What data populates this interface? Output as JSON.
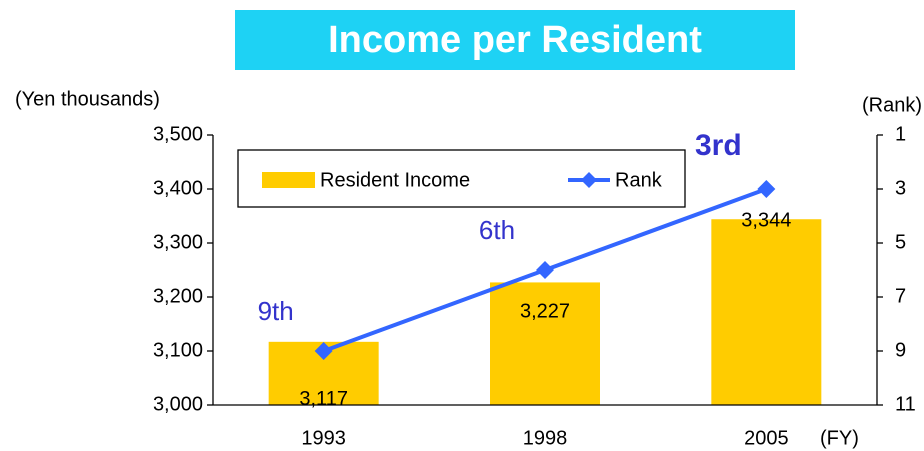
{
  "chart_data": {
    "type": "bar_line",
    "title": "Income per Resident",
    "y_label": "(Yen thousands)",
    "y2_label": "(Rank)",
    "x_label": "(FY)",
    "categories": [
      "1993",
      "1998",
      "2005"
    ],
    "series": [
      {
        "name": "Resident Income",
        "type": "bar",
        "color": "#ffcc00",
        "values": [
          3117,
          3227,
          3344
        ],
        "value_labels": [
          "3,117",
          "3,227",
          "3,344"
        ]
      },
      {
        "name": "Rank",
        "type": "line",
        "axis": "y2",
        "color": "#3366ff",
        "label_color": "#3333cc",
        "values": [
          9,
          6,
          3
        ],
        "value_labels": [
          "9th",
          "6th",
          "3rd"
        ]
      }
    ],
    "ylim": [
      3000,
      3500
    ],
    "yticks": [
      {
        "value": 3000,
        "label": "3,000"
      },
      {
        "value": 3100,
        "label": "3,100"
      },
      {
        "value": 3200,
        "label": "3,200"
      },
      {
        "value": 3300,
        "label": "3,300"
      },
      {
        "value": 3400,
        "label": "3,400"
      },
      {
        "value": 3500,
        "label": "3,500"
      }
    ],
    "y2lim": [
      11,
      1
    ],
    "y2ticks": [
      1,
      3,
      5,
      7,
      9,
      11
    ],
    "legend": "top-left",
    "title_color": "#1ed2f4"
  }
}
